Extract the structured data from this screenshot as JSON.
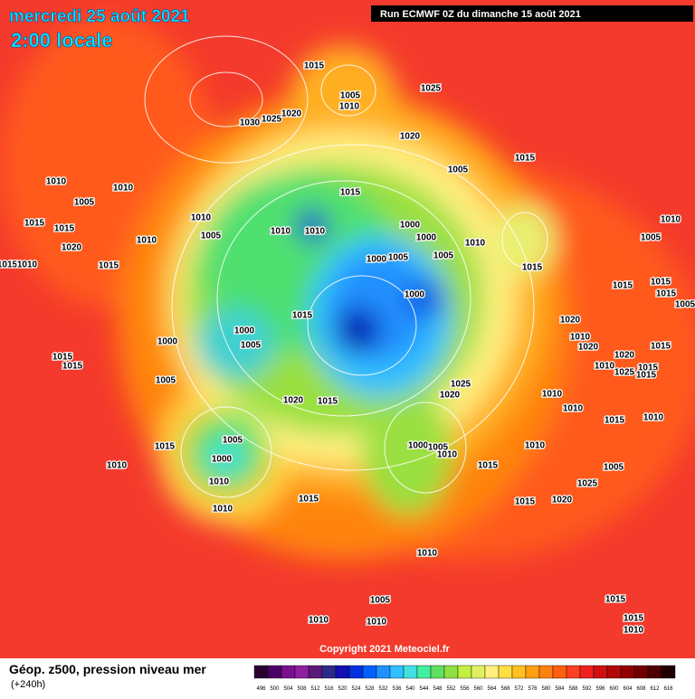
{
  "header": {
    "date": "mercredi 25 août 2021",
    "time": "2:00 locale",
    "run": "Run ECMWF 0Z du dimanche 15 août 2021"
  },
  "copyright": "Copyright 2021 Meteociel.fr",
  "isobar_labels": [
    "1015",
    "1005",
    "1010",
    "1025",
    "1030",
    "1025",
    "1020",
    "1020",
    "1005",
    "1015",
    "1010",
    "1010",
    "1005",
    "1015",
    "1010",
    "1010",
    "1010",
    "1000",
    "1000",
    "1010",
    "1015",
    "1015",
    "1020",
    "1005",
    "1010",
    "1015",
    "1015",
    "1010",
    "1000",
    "1005",
    "1005",
    "1015",
    "1010",
    "1005",
    "1015",
    "1015",
    "1015",
    "1005",
    "1000",
    "1015",
    "1020",
    "1000",
    "1005",
    "1000",
    "1010",
    "1020",
    "1015",
    "1020",
    "1015",
    "1015",
    "1010",
    "1025",
    "1015",
    "1015",
    "1005",
    "1025",
    "1020",
    "1015",
    "1020",
    "1010",
    "1010",
    "1010",
    "1015",
    "1005",
    "1000",
    "1005",
    "1010",
    "1010",
    "1015",
    "1000",
    "1010",
    "1015",
    "1005",
    "1010",
    "1025",
    "1015",
    "1015",
    "1020",
    "1010",
    "1010",
    "1015",
    "1005",
    "1015",
    "1010",
    "1010",
    "1010"
  ],
  "legend": {
    "title": "Géop. z500, pression niveau mer",
    "lead": "(+240h)",
    "values": [
      496,
      500,
      504,
      508,
      512,
      516,
      520,
      524,
      528,
      532,
      536,
      540,
      544,
      548,
      552,
      556,
      560,
      564,
      568,
      572,
      576,
      580,
      584,
      588,
      592,
      596,
      600,
      604,
      608,
      612,
      616
    ],
    "colors": [
      "#2a0030",
      "#4b0066",
      "#7a0f8f",
      "#8f1f9f",
      "#5a1a7a",
      "#2a2a8a",
      "#1010b0",
      "#0030e0",
      "#0060ff",
      "#2090ff",
      "#30c0ff",
      "#40e0e0",
      "#40f0a0",
      "#60e060",
      "#90e040",
      "#c0f040",
      "#e0f060",
      "#fff080",
      "#ffe040",
      "#ffc020",
      "#ffa010",
      "#ff8010",
      "#ff6010",
      "#ff4020",
      "#f02020",
      "#d01010",
      "#b00808",
      "#900000",
      "#700000",
      "#500000",
      "#200000"
    ]
  }
}
